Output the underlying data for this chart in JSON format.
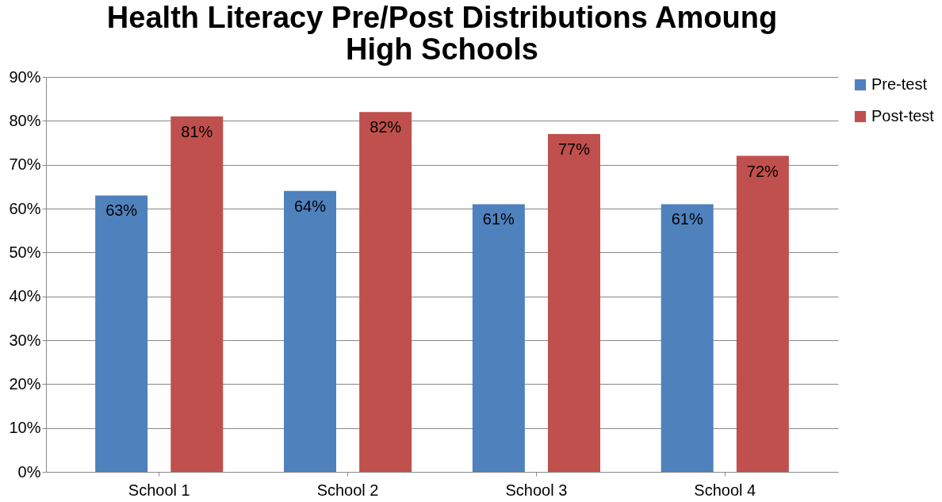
{
  "chart_data": {
    "type": "bar",
    "title": [
      "Health Literacy Pre/Post Distributions Amoung",
      "High Schools"
    ],
    "categories": [
      "School 1",
      "School 2",
      "School 3",
      "School 4"
    ],
    "series": [
      {
        "name": "Pre-test",
        "color": "#4f81bd",
        "values": [
          63,
          64,
          61,
          61
        ],
        "value_labels": [
          "63%",
          "64%",
          "61%",
          "61%"
        ]
      },
      {
        "name": "Post-test",
        "color": "#c0504d",
        "values": [
          81,
          82,
          77,
          72
        ],
        "value_labels": [
          "81%",
          "82%",
          "77%",
          "72%"
        ]
      }
    ],
    "ylim": [
      0,
      90
    ],
    "yticks": [
      {
        "value": 0,
        "label": "0%"
      },
      {
        "value": 10,
        "label": "10%"
      },
      {
        "value": 20,
        "label": "20%"
      },
      {
        "value": 30,
        "label": "30%"
      },
      {
        "value": 40,
        "label": "40%"
      },
      {
        "value": 50,
        "label": "50%"
      },
      {
        "value": 60,
        "label": "60%"
      },
      {
        "value": 70,
        "label": "70%"
      },
      {
        "value": 80,
        "label": "80%"
      },
      {
        "value": 90,
        "label": "90%"
      }
    ],
    "grid": "y",
    "legend": "right"
  }
}
